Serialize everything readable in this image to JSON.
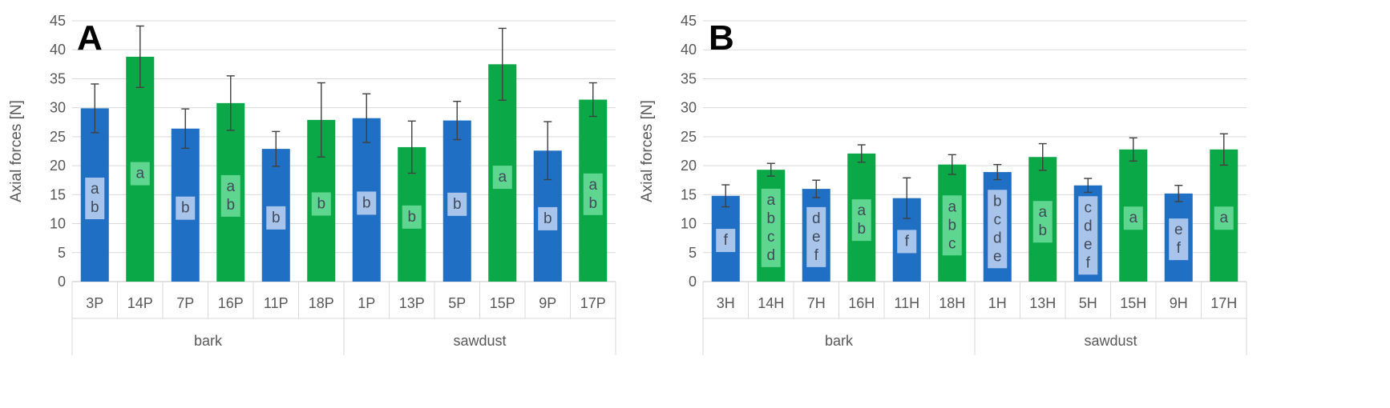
{
  "colors": {
    "blue": "#1f6fc5",
    "green": "#0aa846",
    "blue_label_bg": "#a9c4ea",
    "green_label_bg": "#5fd68f",
    "label_text": "#404a5a",
    "grid": "#d9d9d9",
    "axis_text": "#595959",
    "error_bar": "#404040"
  },
  "chart_data": [
    {
      "type": "bar",
      "panel_label": "A",
      "ylabel": "Axial forces [N]",
      "ylim": [
        0,
        45
      ],
      "yticks": [
        "0",
        "5",
        "10",
        "15",
        "20",
        "25",
        "30",
        "35",
        "40",
        "45"
      ],
      "grid": true,
      "categories": [
        "3P",
        "14P",
        "7P",
        "16P",
        "11P",
        "18P",
        "1P",
        "13P",
        "5P",
        "15P",
        "9P",
        "17P"
      ],
      "groups": [
        {
          "label": "bark",
          "count": 6
        },
        {
          "label": "sawdust",
          "count": 6
        }
      ],
      "series": [
        {
          "name": "Axial forces",
          "values": [
            29.9,
            38.8,
            26.4,
            30.8,
            22.9,
            27.9,
            28.2,
            23.2,
            27.8,
            37.5,
            22.6,
            31.4
          ],
          "errors": [
            4.2,
            5.3,
            3.4,
            4.7,
            3.0,
            6.4,
            4.2,
            4.5,
            3.3,
            6.2,
            5.0,
            2.9
          ],
          "colors": [
            "blue",
            "green",
            "blue",
            "green",
            "blue",
            "green",
            "blue",
            "green",
            "blue",
            "green",
            "blue",
            "green"
          ]
        }
      ],
      "significance_letters": [
        [
          "a",
          "b"
        ],
        [
          "a"
        ],
        [
          "b"
        ],
        [
          "a",
          "b"
        ],
        [
          "b"
        ],
        [
          "b"
        ],
        [
          "b"
        ],
        [
          "b"
        ],
        [
          "b"
        ],
        [
          "a"
        ],
        [
          "b"
        ],
        [
          "a",
          "b"
        ]
      ]
    },
    {
      "type": "bar",
      "panel_label": "B",
      "ylabel": "Axial forces [N]",
      "ylim": [
        0,
        45
      ],
      "yticks": [
        "0",
        "5",
        "10",
        "15",
        "20",
        "25",
        "30",
        "35",
        "40",
        "45"
      ],
      "grid": true,
      "categories": [
        "3H",
        "14H",
        "7H",
        "16H",
        "11H",
        "18H",
        "1H",
        "13H",
        "5H",
        "15H",
        "9H",
        "17H"
      ],
      "groups": [
        {
          "label": "bark",
          "count": 6
        },
        {
          "label": "sawdust",
          "count": 6
        }
      ],
      "series": [
        {
          "name": "Axial forces",
          "values": [
            14.8,
            19.3,
            16.0,
            22.1,
            14.4,
            20.2,
            18.9,
            21.5,
            16.6,
            22.8,
            15.2,
            22.8
          ],
          "errors": [
            1.9,
            1.1,
            1.5,
            1.5,
            3.5,
            1.7,
            1.3,
            2.3,
            1.2,
            2.0,
            1.4,
            2.7
          ],
          "colors": [
            "blue",
            "green",
            "blue",
            "green",
            "blue",
            "green",
            "blue",
            "green",
            "blue",
            "green",
            "blue",
            "green"
          ]
        }
      ],
      "significance_letters": [
        [
          "f"
        ],
        [
          "a",
          "b",
          "c",
          "d"
        ],
        [
          "d",
          "e",
          "f"
        ],
        [
          "a",
          "b"
        ],
        [
          "f"
        ],
        [
          "a",
          "b",
          "c"
        ],
        [
          "b",
          "c",
          "d",
          "e"
        ],
        [
          "a",
          "b"
        ],
        [
          "c",
          "d",
          "e",
          "f"
        ],
        [
          "a"
        ],
        [
          "e",
          "f"
        ],
        [
          "a"
        ]
      ]
    }
  ]
}
